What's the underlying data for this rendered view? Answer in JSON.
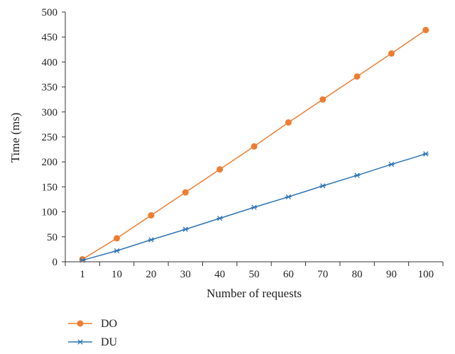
{
  "chart_data": {
    "type": "line",
    "title": "",
    "xlabel": "Number of requests",
    "ylabel": "Time (ms)",
    "categories": [
      "1",
      "10",
      "20",
      "30",
      "40",
      "50",
      "60",
      "70",
      "80",
      "90",
      "100"
    ],
    "ylim": [
      0,
      500
    ],
    "yticks": [
      0,
      50,
      100,
      150,
      200,
      250,
      300,
      350,
      400,
      450,
      500
    ],
    "grid": false,
    "legend_position": "bottom-left",
    "series": [
      {
        "name": "DO",
        "color": "#ED7D31",
        "marker": "circle",
        "values": [
          5,
          47,
          93,
          139,
          185,
          231,
          279,
          325,
          371,
          417,
          464
        ]
      },
      {
        "name": "DU",
        "color": "#2E75B6",
        "marker": "star",
        "values": [
          3,
          22,
          44,
          65,
          87,
          109,
          130,
          152,
          173,
          195,
          216
        ]
      }
    ]
  }
}
